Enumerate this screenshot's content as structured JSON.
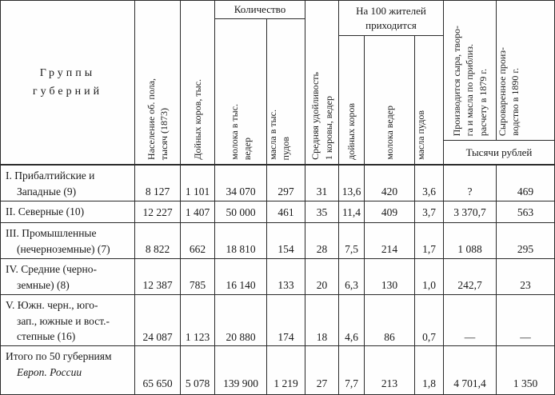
{
  "table": {
    "row_group_header": {
      "line1": "Группы",
      "line2": "губерний"
    },
    "groups": {
      "quantity": "Количество",
      "per100_line1": "На 100 жителей",
      "per100_line2": "приходится",
      "thousand_rubles": "Тысячи рублей"
    },
    "columns": {
      "population": {
        "lines": [
          "Население об. пола,",
          "тысяч (1873)"
        ]
      },
      "cows": {
        "lines": [
          "Дойных коров, тыс."
        ]
      },
      "milk": {
        "lines": [
          "молока в тыс.",
          "ведер"
        ]
      },
      "butter": {
        "lines": [
          "масла в тыс.",
          "пудов"
        ]
      },
      "avg_yield": {
        "lines": [
          "Средняя удойливость",
          "1 коровы, ведер"
        ]
      },
      "per100_cows": {
        "lines": [
          "дойных коров"
        ]
      },
      "per100_milk": {
        "lines": [
          "молока ведер"
        ]
      },
      "per100_butter": {
        "lines": [
          "масла пудов"
        ]
      },
      "produced_1879": {
        "lines": [
          "Производится сыра, творо-",
          "га и масла по приблиз.",
          "расчету в 1879 г."
        ]
      },
      "cheese_1890": {
        "lines": [
          "Сыроваренное произ-",
          "водство в 1890 г."
        ]
      }
    },
    "rows": [
      {
        "label_lines": [
          "I. Прибалтийские и",
          "Западные (9)"
        ],
        "values": [
          "8 127",
          "1 101",
          "34 070",
          "297",
          "31",
          "13,6",
          "420",
          "3,6",
          "?",
          "469"
        ]
      },
      {
        "label_lines": [
          "II. Северные (10)"
        ],
        "values": [
          "12 227",
          "1 407",
          "50 000",
          "461",
          "35",
          "11,4",
          "409",
          "3,7",
          "3 370,7",
          "563"
        ]
      },
      {
        "label_lines": [
          "III. Промышленные",
          "(нечерноземные) (7)"
        ],
        "values": [
          "8 822",
          "662",
          "18 810",
          "154",
          "28",
          "7,5",
          "214",
          "1,7",
          "1 088",
          "295"
        ]
      },
      {
        "label_lines": [
          "IV. Средние (черно-",
          "земные) (8)"
        ],
        "values": [
          "12 387",
          "785",
          "16 140",
          "133",
          "20",
          "6,3",
          "130",
          "1,0",
          "242,7",
          "23"
        ]
      },
      {
        "label_lines": [
          "V. Южн. черн., юго-",
          "зап., южные и вост.-",
          "степные (16)"
        ],
        "values": [
          "24 087",
          "1 123",
          "20 880",
          "174",
          "18",
          "4,6",
          "86",
          "0,7",
          "—",
          "—"
        ]
      },
      {
        "label_lines": [
          "Итого по 50 губерниям",
          "Европ. России"
        ],
        "values": [
          "65 650",
          "5 078",
          "139 900",
          "1 219",
          "27",
          "7,7",
          "213",
          "1,8",
          "4 701,4",
          "1 350"
        ]
      }
    ]
  }
}
